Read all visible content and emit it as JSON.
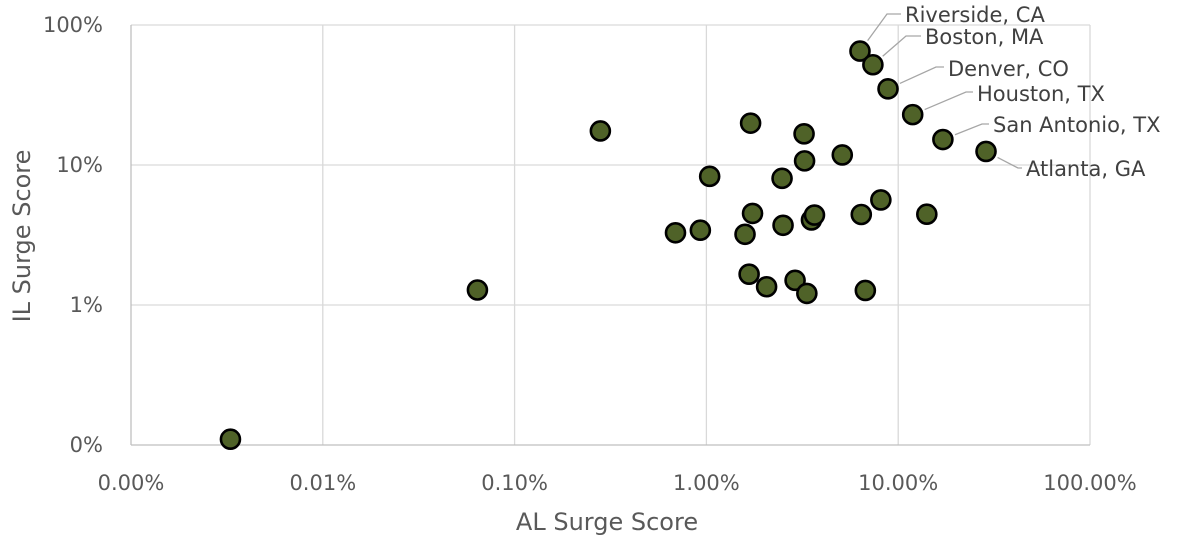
{
  "chart_data": {
    "type": "scatter",
    "title": "",
    "xlabel": "AL Surge Score",
    "ylabel": "IL Surge Score",
    "xscale": "log",
    "yscale": "log",
    "xlim": [
      1e-05,
      1
    ],
    "ylim": [
      0.001,
      1
    ],
    "x_tick_values": [
      1e-05,
      0.0001,
      0.001,
      0.01,
      0.1,
      1
    ],
    "x_tick_labels": [
      "0.00%",
      "0.01%",
      "0.10%",
      "1.00%",
      "10.00%",
      "100.00%"
    ],
    "y_tick_values": [
      0.001,
      0.01,
      0.1,
      1
    ],
    "y_tick_labels": [
      "0%",
      "1%",
      "10%",
      "100%"
    ],
    "grid": true,
    "legend": "none",
    "marker_color": "#4f6228",
    "marker_edge_color": "#000000",
    "points": [
      {
        "x": 3.3e-05,
        "y": 0.0011
      },
      {
        "x": 0.00064,
        "y": 0.0128
      },
      {
        "x": 0.0028,
        "y": 0.175
      },
      {
        "x": 0.0069,
        "y": 0.0328
      },
      {
        "x": 0.0093,
        "y": 0.0342
      },
      {
        "x": 0.0104,
        "y": 0.083
      },
      {
        "x": 0.0159,
        "y": 0.032
      },
      {
        "x": 0.0167,
        "y": 0.0166
      },
      {
        "x": 0.017,
        "y": 0.199
      },
      {
        "x": 0.0174,
        "y": 0.0451
      },
      {
        "x": 0.0206,
        "y": 0.0135
      },
      {
        "x": 0.0248,
        "y": 0.0803
      },
      {
        "x": 0.0251,
        "y": 0.0371
      },
      {
        "x": 0.029,
        "y": 0.015
      },
      {
        "x": 0.0323,
        "y": 0.167
      },
      {
        "x": 0.0325,
        "y": 0.107
      },
      {
        "x": 0.0334,
        "y": 0.0121
      },
      {
        "x": 0.0353,
        "y": 0.0405
      },
      {
        "x": 0.0366,
        "y": 0.0439
      },
      {
        "x": 0.0511,
        "y": 0.118
      },
      {
        "x": 0.0642,
        "y": 0.0443
      },
      {
        "x": 0.0674,
        "y": 0.0127
      },
      {
        "x": 0.0812,
        "y": 0.0563
      },
      {
        "x": 0.141,
        "y": 0.0445
      },
      {
        "x": 0.0632,
        "y": 0.651,
        "label": "Riverside, CA"
      },
      {
        "x": 0.0738,
        "y": 0.52,
        "label": "Boston, MA"
      },
      {
        "x": 0.0885,
        "y": 0.35,
        "label": "Denver, CO"
      },
      {
        "x": 0.119,
        "y": 0.229,
        "label": "Houston, TX"
      },
      {
        "x": 0.171,
        "y": 0.152,
        "label": "San Antonio, TX"
      },
      {
        "x": 0.287,
        "y": 0.125,
        "label": "Atlanta, GA"
      }
    ]
  }
}
